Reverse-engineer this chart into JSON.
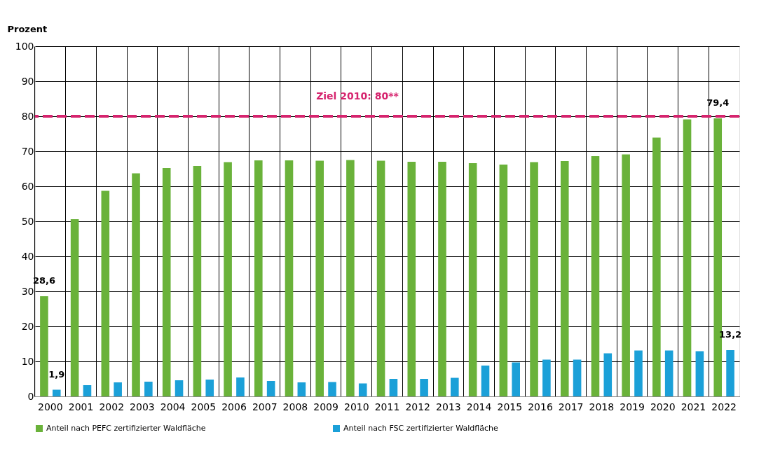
{
  "chart_data": {
    "type": "bar",
    "ylabel": "Prozent",
    "categories": [
      "2000",
      "2001",
      "2002",
      "2003",
      "2004",
      "2005",
      "2006",
      "2007",
      "2008",
      "2009",
      "2010",
      "2011",
      "2012",
      "2013",
      "2014",
      "2015",
      "2016",
      "2017",
      "2018",
      "2019",
      "2020",
      "2021",
      "2022"
    ],
    "series": [
      {
        "name": "Anteil nach PEFC zertifizierter Waldfläche",
        "color": "#6ab23a",
        "values": [
          28.6,
          50.6,
          58.7,
          63.7,
          65.2,
          65.8,
          66.9,
          67.4,
          67.4,
          67.3,
          67.5,
          67.3,
          67.0,
          67.0,
          66.6,
          66.2,
          66.9,
          67.2,
          68.6,
          69.1,
          73.9,
          79.1,
          79.4
        ],
        "value_labels": [
          "28,6",
          null,
          null,
          null,
          null,
          null,
          null,
          null,
          null,
          null,
          null,
          null,
          null,
          null,
          null,
          null,
          null,
          null,
          null,
          null,
          null,
          null,
          "79,4"
        ]
      },
      {
        "name": "Anteil nach FSC zertifizierter Waldfläche",
        "color": "#1ba0d8",
        "values": [
          1.9,
          3.2,
          4.0,
          4.2,
          4.6,
          4.8,
          5.4,
          4.4,
          4.0,
          4.1,
          3.7,
          5.0,
          5.0,
          5.3,
          8.8,
          9.7,
          10.5,
          10.5,
          12.3,
          13.1,
          13.1,
          12.9,
          13.2
        ],
        "value_labels": [
          "1,9",
          null,
          null,
          null,
          null,
          null,
          null,
          null,
          null,
          null,
          null,
          null,
          null,
          null,
          null,
          null,
          null,
          null,
          null,
          null,
          null,
          null,
          "13,2"
        ]
      }
    ],
    "ylim": [
      0,
      100
    ],
    "yticks": [
      0,
      10,
      20,
      30,
      40,
      50,
      60,
      70,
      80,
      90,
      100
    ],
    "ref_lines": [
      {
        "axis": "y",
        "value": 80,
        "label": "Ziel 2010: 80**",
        "color": "#d6246e",
        "line_style": "dashed"
      }
    ],
    "grid": true,
    "legend": "bottom"
  }
}
